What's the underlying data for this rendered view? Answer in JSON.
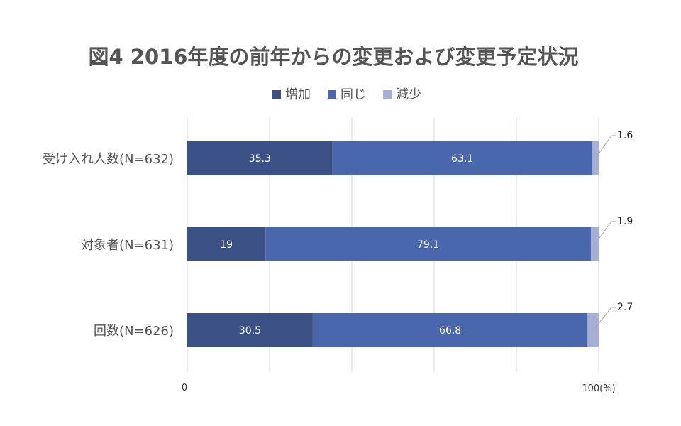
{
  "chart_data": {
    "type": "bar",
    "orientation": "horizontal",
    "stacked": true,
    "title": "図4 2016年度の前年からの変更および変更予定状況",
    "categories": [
      "受け入れ人数(N=632)",
      "対象者(N=631)",
      "回数(N=626)"
    ],
    "series": [
      {
        "name": "増加",
        "color": "#3b5186",
        "values": [
          35.3,
          19,
          30.5
        ]
      },
      {
        "name": "同じ",
        "color": "#4a67ae",
        "values": [
          63.1,
          79.1,
          66.8
        ]
      },
      {
        "name": "減少",
        "color": "#a7b0d4",
        "values": [
          1.6,
          1.9,
          2.7
        ]
      }
    ],
    "xlim": [
      0,
      100
    ],
    "x_tick_labels": [
      "0",
      "100(%)"
    ],
    "grid": true,
    "legend_position": "top"
  }
}
